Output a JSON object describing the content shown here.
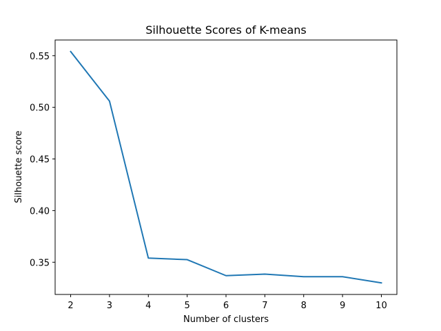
{
  "chart_data": {
    "type": "line",
    "title": "Silhouette Scores of K-means",
    "xlabel": "Number of clusters",
    "ylabel": "Silhouette score",
    "x": [
      2,
      3,
      4,
      5,
      6,
      7,
      8,
      9,
      10
    ],
    "series": [
      {
        "values": [
          0.554,
          0.506,
          0.354,
          0.3525,
          0.337,
          0.3385,
          0.336,
          0.336,
          0.33
        ],
        "color": "#1f77b4"
      }
    ],
    "xlim": [
      1.6,
      10.4
    ],
    "ylim": [
      0.3188,
      0.5652
    ],
    "xticks": [
      2,
      3,
      4,
      5,
      6,
      7,
      8,
      9,
      10
    ],
    "xtick_labels": [
      "2",
      "3",
      "4",
      "5",
      "6",
      "7",
      "8",
      "9",
      "10"
    ],
    "yticks": [
      0.35,
      0.4,
      0.45,
      0.5,
      0.55
    ],
    "ytick_labels": [
      "0.35",
      "0.40",
      "0.45",
      "0.50",
      "0.55"
    ],
    "grid": false,
    "legend": "none"
  }
}
